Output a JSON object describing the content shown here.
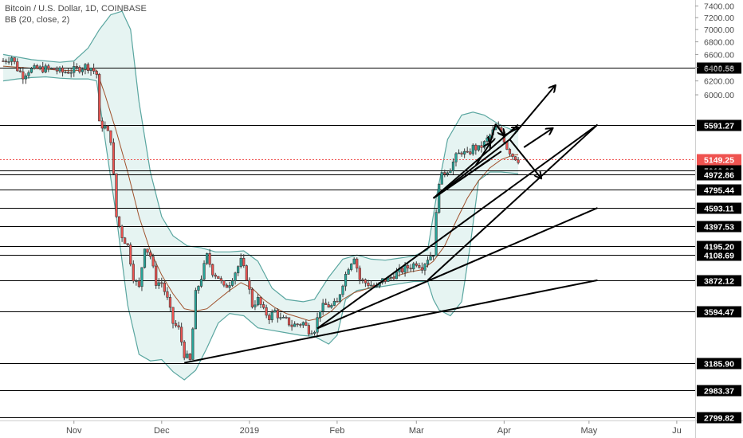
{
  "chart_data": {
    "type": "candlestick",
    "title": "Bitcoin / U.S. Dollar, 1D, COINBASE",
    "indicator": "BB (20, close, 2)",
    "x_axis_labels": [
      "Nov",
      "Dec",
      "2019",
      "Feb",
      "Mar",
      "Apr",
      "May",
      "Ju"
    ],
    "y_axis_ticks": [
      6000,
      6200,
      6400,
      6600,
      6800,
      7000,
      7200,
      7400
    ],
    "y_axis_tick_labels": [
      "6000.00",
      "6200.00",
      "6400.00",
      "6600.00",
      "6800.00",
      "7000.00",
      "7200.00",
      "7400.00"
    ],
    "y_scale": "log",
    "ylim": [
      2780,
      7450
    ],
    "current_price": "5149.25",
    "horizontal_levels": [
      6400.58,
      5591.27,
      5019.02,
      4972.86,
      4795.44,
      4593.11,
      4397.53,
      4195.2,
      4108.69,
      3872.12,
      3594.47,
      3185.9,
      2983.37,
      2799.82
    ],
    "horizontal_level_labels": [
      "6400.58",
      "5591.27",
      "5019.02",
      "4972.86",
      "4795.44",
      "4593.11",
      "4397.53",
      "4195.20",
      "4108.69",
      "3872.12",
      "3594.47",
      "3185.90",
      "2983.37",
      "2799.82"
    ],
    "price_path": [
      [
        0,
        6500
      ],
      [
        3,
        6560
      ],
      [
        5,
        6380
      ],
      [
        7,
        6280
      ],
      [
        9,
        6360
      ],
      [
        12,
        6380
      ],
      [
        15,
        6380
      ],
      [
        18,
        6370
      ],
      [
        21,
        6330
      ],
      [
        24,
        6350
      ],
      [
        27,
        6390
      ],
      [
        29,
        6420
      ],
      [
        31,
        6400
      ],
      [
        33,
        6300
      ],
      [
        34,
        5600
      ],
      [
        36,
        5560
      ],
      [
        38,
        5400
      ],
      [
        40,
        4500
      ],
      [
        42,
        4300
      ],
      [
        44,
        4200
      ],
      [
        46,
        3900
      ],
      [
        48,
        3800
      ],
      [
        50,
        4200
      ],
      [
        52,
        4100
      ],
      [
        54,
        3850
      ],
      [
        56,
        3850
      ],
      [
        58,
        3700
      ],
      [
        60,
        3500
      ],
      [
        62,
        3450
      ],
      [
        64,
        3250
      ],
      [
        66,
        3200
      ],
      [
        67,
        3450
      ],
      [
        68,
        3750
      ],
      [
        70,
        3900
      ],
      [
        72,
        4100
      ],
      [
        74,
        3950
      ],
      [
        76,
        3900
      ],
      [
        78,
        3800
      ],
      [
        80,
        3850
      ],
      [
        82,
        3950
      ],
      [
        84,
        4050
      ],
      [
        86,
        3900
      ],
      [
        88,
        3650
      ],
      [
        90,
        3700
      ],
      [
        92,
        3600
      ],
      [
        94,
        3550
      ],
      [
        96,
        3600
      ],
      [
        98,
        3530
      ],
      [
        100,
        3520
      ],
      [
        102,
        3480
      ],
      [
        104,
        3490
      ],
      [
        106,
        3500
      ],
      [
        108,
        3440
      ],
      [
        110,
        3450
      ],
      [
        112,
        3620
      ],
      [
        114,
        3650
      ],
      [
        116,
        3640
      ],
      [
        118,
        3670
      ],
      [
        120,
        3850
      ],
      [
        122,
        4000
      ],
      [
        124,
        4100
      ],
      [
        126,
        3880
      ],
      [
        128,
        3850
      ],
      [
        130,
        3830
      ],
      [
        132,
        3800
      ],
      [
        134,
        3870
      ],
      [
        136,
        3880
      ],
      [
        138,
        3920
      ],
      [
        140,
        3950
      ],
      [
        142,
        3980
      ],
      [
        144,
        4000
      ],
      [
        146,
        4040
      ],
      [
        148,
        4000
      ],
      [
        150,
        4080
      ],
      [
        152,
        4130
      ],
      [
        154,
        4900
      ],
      [
        156,
        5000
      ],
      [
        158,
        5050
      ],
      [
        160,
        5180
      ],
      [
        162,
        5250
      ],
      [
        164,
        5200
      ],
      [
        166,
        5300
      ],
      [
        168,
        5280
      ],
      [
        170,
        5350
      ],
      [
        172,
        5450
      ],
      [
        174,
        5550
      ],
      [
        176,
        5500
      ],
      [
        178,
        5300
      ],
      [
        180,
        5200
      ],
      [
        182,
        5149
      ]
    ],
    "bollinger_upper": [
      [
        0,
        6600
      ],
      [
        10,
        6520
      ],
      [
        20,
        6480
      ],
      [
        25,
        6500
      ],
      [
        30,
        6700
      ],
      [
        34,
        7000
      ],
      [
        38,
        7250
      ],
      [
        42,
        7310
      ],
      [
        45,
        7000
      ],
      [
        48,
        5900
      ],
      [
        52,
        5000
      ],
      [
        56,
        4500
      ],
      [
        60,
        4300
      ],
      [
        65,
        4200
      ],
      [
        70,
        4180
      ],
      [
        75,
        4140
      ],
      [
        80,
        4140
      ],
      [
        85,
        4150
      ],
      [
        90,
        4050
      ],
      [
        95,
        3800
      ],
      [
        100,
        3700
      ],
      [
        106,
        3680
      ],
      [
        110,
        3700
      ],
      [
        115,
        3900
      ],
      [
        120,
        4070
      ],
      [
        125,
        4110
      ],
      [
        130,
        4070
      ],
      [
        135,
        4060
      ],
      [
        140,
        4080
      ],
      [
        145,
        4100
      ],
      [
        150,
        4160
      ],
      [
        153,
        4700
      ],
      [
        157,
        5400
      ],
      [
        162,
        5720
      ],
      [
        166,
        5760
      ],
      [
        170,
        5720
      ],
      [
        175,
        5600
      ],
      [
        180,
        5520
      ],
      [
        182,
        5500
      ]
    ],
    "bollinger_lower": [
      [
        0,
        6200
      ],
      [
        5,
        6230
      ],
      [
        10,
        6250
      ],
      [
        15,
        6260
      ],
      [
        20,
        6240
      ],
      [
        25,
        6230
      ],
      [
        30,
        6230
      ],
      [
        33,
        6200
      ],
      [
        36,
        5400
      ],
      [
        40,
        4500
      ],
      [
        44,
        3650
      ],
      [
        48,
        3250
      ],
      [
        52,
        3200
      ],
      [
        56,
        3210
      ],
      [
        60,
        3120
      ],
      [
        64,
        3060
      ],
      [
        68,
        3130
      ],
      [
        72,
        3300
      ],
      [
        76,
        3500
      ],
      [
        80,
        3580
      ],
      [
        85,
        3560
      ],
      [
        90,
        3460
      ],
      [
        95,
        3440
      ],
      [
        100,
        3420
      ],
      [
        105,
        3400
      ],
      [
        110,
        3390
      ],
      [
        115,
        3330
      ],
      [
        118,
        3400
      ],
      [
        121,
        3700
      ],
      [
        125,
        3780
      ],
      [
        130,
        3800
      ],
      [
        135,
        3820
      ],
      [
        140,
        3840
      ],
      [
        145,
        3860
      ],
      [
        150,
        3860
      ],
      [
        152,
        3700
      ],
      [
        154,
        3610
      ],
      [
        158,
        3560
      ],
      [
        162,
        3680
      ],
      [
        165,
        4200
      ],
      [
        168,
        4900
      ],
      [
        172,
        5000
      ],
      [
        176,
        5000
      ],
      [
        182,
        4980
      ]
    ],
    "bollinger_mid": [
      [
        0,
        6420
      ],
      [
        10,
        6390
      ],
      [
        20,
        6360
      ],
      [
        25,
        6350
      ],
      [
        30,
        6370
      ],
      [
        33,
        6360
      ],
      [
        36,
        6000
      ],
      [
        40,
        5500
      ],
      [
        44,
        5000
      ],
      [
        48,
        4500
      ],
      [
        52,
        4150
      ],
      [
        56,
        3920
      ],
      [
        60,
        3750
      ],
      [
        64,
        3620
      ],
      [
        68,
        3600
      ],
      [
        72,
        3620
      ],
      [
        76,
        3700
      ],
      [
        80,
        3780
      ],
      [
        84,
        3850
      ],
      [
        88,
        3800
      ],
      [
        92,
        3700
      ],
      [
        96,
        3630
      ],
      [
        100,
        3580
      ],
      [
        104,
        3550
      ],
      [
        108,
        3520
      ],
      [
        112,
        3540
      ],
      [
        116,
        3600
      ],
      [
        120,
        3700
      ],
      [
        124,
        3760
      ],
      [
        128,
        3790
      ],
      [
        132,
        3830
      ],
      [
        136,
        3880
      ],
      [
        140,
        3920
      ],
      [
        144,
        3950
      ],
      [
        148,
        3970
      ],
      [
        152,
        4050
      ],
      [
        156,
        4200
      ],
      [
        160,
        4450
      ],
      [
        164,
        4700
      ],
      [
        168,
        4900
      ],
      [
        172,
        5050
      ],
      [
        176,
        5150
      ],
      [
        180,
        5200
      ],
      [
        182,
        5210
      ]
    ],
    "trend_lines": [
      {
        "from": [
          64,
          3185.9
        ],
        "to": [
          210,
          3872.12
        ]
      },
      {
        "from": [
          111,
          3455
        ],
        "to": [
          210,
          4593.11
        ]
      },
      {
        "from": [
          111,
          3455
        ],
        "to": [
          210,
          5591.27
        ]
      },
      {
        "from": [
          150,
          3872.12
        ],
        "to": [
          210,
          5591.27
        ]
      },
      {
        "from": [
          152,
          4700
        ],
        "to": [
          182,
          5591.27
        ]
      },
      {
        "from": [
          152,
          4700
        ],
        "to": [
          179,
          5400
        ]
      },
      {
        "from": [
          152,
          4700
        ],
        "to": [
          172,
          5150
        ]
      },
      {
        "from": [
          152,
          4700
        ],
        "to": [
          176,
          5250
        ]
      }
    ],
    "arrows": [
      {
        "from": [
          167,
          5080
        ],
        "to": [
          172,
          5350
        ]
      },
      {
        "from": [
          174,
          5600
        ],
        "to": [
          172,
          5350
        ]
      },
      {
        "from": [
          174,
          5600
        ],
        "to": [
          177,
          5450
        ]
      },
      {
        "from": [
          177,
          5450
        ],
        "to": [
          182,
          5550
        ]
      },
      {
        "from": [
          179,
          5400
        ],
        "to": [
          195,
          6130
        ]
      },
      {
        "from": [
          184,
          5300
        ],
        "to": [
          194,
          5540
        ]
      },
      {
        "from": [
          179,
          5400
        ],
        "to": [
          190,
          4930
        ]
      }
    ],
    "colors": {
      "up": "#26a69a",
      "down": "#ef5350",
      "candle_body": "#3a3a3a",
      "band_line": "#5aa6a0",
      "band_fill": "#e6f4f2",
      "mid_line": "#a0522d",
      "level_line": "#000000",
      "price_line": "#ef5350",
      "label_bg": "#000000",
      "current_label_bg": "#ef5350"
    }
  }
}
